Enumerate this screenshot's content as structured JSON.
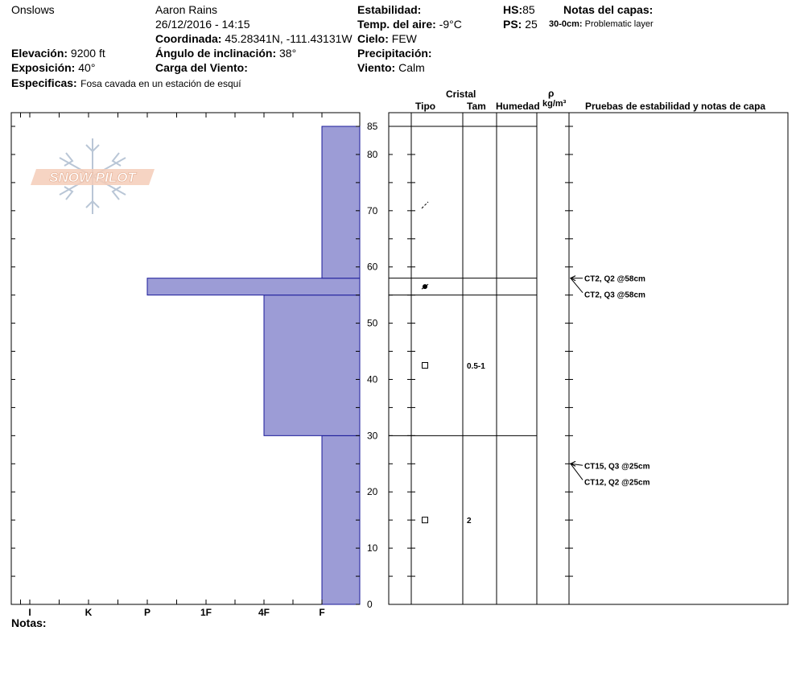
{
  "header": {
    "location": "Onslows",
    "observer": "Aaron Rains",
    "datetime": "26/12/2016 - 14:15",
    "coord_label": "Coordinada:",
    "coord_value": "45.28341N, -111.43131W",
    "elev_label": "Elevación:",
    "elev_value": "9200 ft",
    "incl_label": "Ángulo de inclinación:",
    "incl_value": "38°",
    "expo_label": "Exposición:",
    "expo_value": "40°",
    "wind_load_label": "Carga del Viento:",
    "wind_load_value": "",
    "spec_label": "Especificas:",
    "spec_value": "Fosa cavada en un estación de esquí",
    "stab_label": "Estabilidad:",
    "stab_value": "",
    "air_label": "Temp. del aire:",
    "air_value": "-9°C",
    "sky_label": "Cielo:",
    "sky_value": "FEW",
    "precip_label": "Precipitación:",
    "precip_value": "",
    "wind_label": "Viento:",
    "wind_value": "Calm",
    "hs_label": "HS:",
    "hs_value": "85",
    "ps_label": "PS:",
    "ps_value": "25",
    "layer_notes_label": "Notas del capas:",
    "layer_note_range": "30-0cm:",
    "layer_note_text": "Problematic layer",
    "notes_label": "Notas:"
  },
  "logo_text": "SNOW PILOT",
  "columns": {
    "cristal": "Cristal",
    "tipo": "Tipo",
    "tam": "Tam",
    "humedad": "Humedad",
    "rho": "ρ",
    "density_unit": "kg/m³",
    "tests": "Pruebas de estabilidad y notas de capa"
  },
  "colors": {
    "hardness_fill": "#9c9cd6",
    "hardness_stroke": "#1a1a99"
  },
  "chart_data": {
    "type": "bar",
    "title": "",
    "ylim": [
      0,
      85
    ],
    "y_ticks": [
      0,
      10,
      20,
      30,
      40,
      50,
      60,
      70,
      80,
      85
    ],
    "hardness_ticks": [
      "I",
      "K",
      "P",
      "1F",
      "4F",
      "F"
    ],
    "layers": [
      {
        "bottom": 0,
        "top": 30,
        "hardness": "F"
      },
      {
        "bottom": 30,
        "top": 55,
        "hardness": "4F"
      },
      {
        "bottom": 55,
        "top": 58,
        "hardness": "P"
      },
      {
        "bottom": 58,
        "top": 85,
        "hardness": "F"
      }
    ],
    "layer_lines": [
      30,
      55,
      58,
      85
    ],
    "grains": [
      {
        "height": 71,
        "symbol": "decomposing"
      },
      {
        "height": 56.5,
        "symbol": "graupel"
      },
      {
        "height": 42.5,
        "symbol": "faceted",
        "size": "0.5-1"
      },
      {
        "height": 15,
        "symbol": "faceted",
        "size": "2"
      }
    ],
    "tests": [
      {
        "height": 58,
        "label": "CT2, Q2 @58cm"
      },
      {
        "height": 58,
        "label": "CT2, Q3 @58cm"
      },
      {
        "height": 25,
        "label": "CT15, Q3 @25cm"
      },
      {
        "height": 25,
        "label": "CT12, Q2 @25cm"
      }
    ]
  }
}
